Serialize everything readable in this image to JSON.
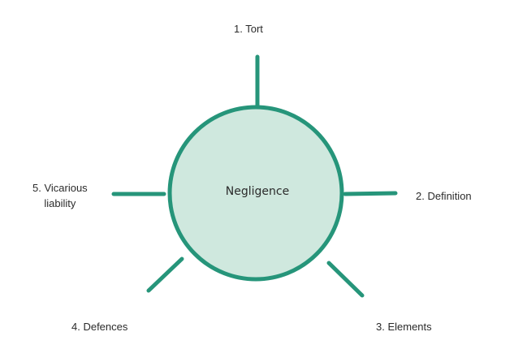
{
  "diagram": {
    "center": {
      "label": "Negligence"
    },
    "spokes": [
      {
        "id": "tort",
        "label": "1. Tort"
      },
      {
        "id": "definition",
        "label": "2. Definition"
      },
      {
        "id": "elements",
        "label": "3. Elements"
      },
      {
        "id": "defences",
        "label": "4. Defences"
      },
      {
        "id": "vicarious",
        "label_lines": [
          "5. Vicarious",
          "liability"
        ]
      }
    ],
    "colors": {
      "stroke": "#26957a",
      "fill": "#cfe8de",
      "text": "#2b2b2b"
    }
  }
}
